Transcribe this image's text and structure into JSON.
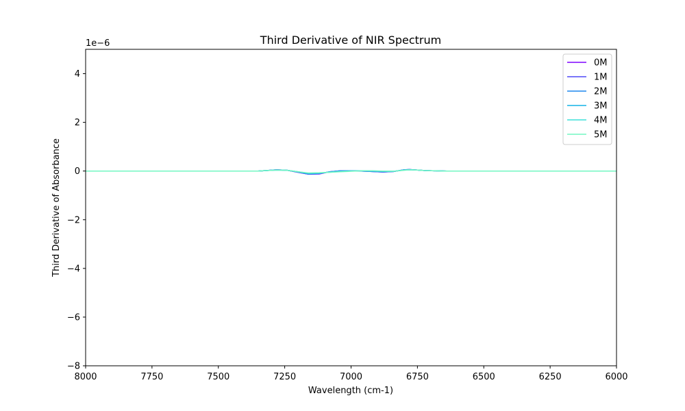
{
  "chart_data": {
    "type": "line",
    "title": "Third Derivative of NIR Spectrum",
    "xlabel": "Wavelength (cm-1)",
    "ylabel": "Third Derivative of Absorbance",
    "y_offset_text": "1e−6",
    "xlim": [
      8000,
      6000
    ],
    "ylim": [
      -8,
      5
    ],
    "y_scale_factor": 1e-06,
    "x_ticks": [
      8000,
      7750,
      7500,
      7250,
      7000,
      6750,
      6500,
      6250,
      6000
    ],
    "x_tick_labels": [
      "8000",
      "7750",
      "7500",
      "7250",
      "7000",
      "6750",
      "6500",
      "6250",
      "6000"
    ],
    "y_ticks": [
      4,
      2,
      0,
      -2,
      -4,
      -6,
      -8
    ],
    "y_tick_labels": [
      "4",
      "2",
      "0",
      "−2",
      "−4",
      "−6",
      "−8"
    ],
    "grid": false,
    "legend_position": "top-right",
    "series": [
      {
        "name": "0M",
        "color": "#7f00ff",
        "x": [
          8000,
          7350,
          7320,
          7280,
          7240,
          7200,
          7160,
          7120,
          7080,
          7040,
          7000,
          6960,
          6920,
          6880,
          6840,
          6800,
          6780,
          6750,
          6720,
          6680,
          6640,
          6600,
          6000
        ],
        "y": [
          0,
          0,
          0.02,
          0.05,
          0.03,
          -0.05,
          -0.13,
          -0.12,
          -0.03,
          0.01,
          0.01,
          0.0,
          -0.02,
          -0.04,
          -0.02,
          0.05,
          0.06,
          0.04,
          0.02,
          0.01,
          0.0,
          0.0,
          0
        ]
      },
      {
        "name": "1M",
        "color": "#4f49f7",
        "x": [
          8000,
          7350,
          7320,
          7280,
          7240,
          7200,
          7160,
          7120,
          7080,
          7040,
          7000,
          6960,
          6920,
          6880,
          6840,
          6800,
          6780,
          6750,
          6720,
          6680,
          6640,
          6600,
          6000
        ],
        "y": [
          0,
          0,
          0.02,
          0.05,
          0.03,
          -0.05,
          -0.13,
          -0.11,
          -0.03,
          0.01,
          0.01,
          0.0,
          -0.02,
          -0.04,
          -0.02,
          0.05,
          0.06,
          0.04,
          0.02,
          0.01,
          0.0,
          0.0,
          0
        ]
      },
      {
        "name": "2M",
        "color": "#1c86ee",
        "x": [
          8000,
          7350,
          7320,
          7280,
          7240,
          7200,
          7160,
          7120,
          7080,
          7040,
          7000,
          6960,
          6920,
          6880,
          6840,
          6800,
          6780,
          6750,
          6720,
          6680,
          6640,
          6600,
          6000
        ],
        "y": [
          0,
          0,
          0.02,
          0.05,
          0.03,
          -0.04,
          -0.12,
          -0.1,
          -0.03,
          0.01,
          0.01,
          0.0,
          -0.02,
          -0.03,
          -0.02,
          0.05,
          0.06,
          0.04,
          0.02,
          0.01,
          0.0,
          0.0,
          0
        ]
      },
      {
        "name": "3M",
        "color": "#12b2e6",
        "x": [
          8000,
          7350,
          7320,
          7280,
          7240,
          7200,
          7160,
          7120,
          7080,
          7040,
          7000,
          6960,
          6920,
          6880,
          6840,
          6800,
          6780,
          6750,
          6720,
          6680,
          6640,
          6600,
          6000
        ],
        "y": [
          0,
          0,
          0.02,
          0.04,
          0.03,
          -0.03,
          -0.1,
          -0.09,
          -0.04,
          -0.01,
          0.01,
          0.01,
          0.0,
          -0.02,
          -0.01,
          0.04,
          0.05,
          0.04,
          0.02,
          0.01,
          0.0,
          0.0,
          0
        ]
      },
      {
        "name": "4M",
        "color": "#3de0d8",
        "x": [
          8000,
          7350,
          7320,
          7280,
          7240,
          7200,
          7160,
          7120,
          7080,
          7040,
          7000,
          6960,
          6920,
          6880,
          6840,
          6800,
          6780,
          6750,
          6720,
          6680,
          6640,
          6600,
          6000
        ],
        "y": [
          0,
          0,
          0.02,
          0.04,
          0.03,
          -0.03,
          -0.09,
          -0.08,
          -0.05,
          -0.02,
          0.0,
          0.01,
          0.01,
          -0.01,
          -0.01,
          0.04,
          0.05,
          0.04,
          0.02,
          0.01,
          0.0,
          0.0,
          0
        ]
      },
      {
        "name": "5M",
        "color": "#72f7c2",
        "x": [
          8000,
          7350,
          7320,
          7280,
          7240,
          7200,
          7160,
          7120,
          7080,
          7040,
          7000,
          6960,
          6920,
          6880,
          6840,
          6800,
          6780,
          6750,
          6720,
          6680,
          6640,
          6600,
          6000
        ],
        "y": [
          0,
          0,
          0.02,
          0.04,
          0.03,
          -0.03,
          -0.08,
          -0.07,
          -0.05,
          -0.03,
          -0.01,
          0.01,
          0.01,
          0.0,
          -0.01,
          0.03,
          0.05,
          0.04,
          0.02,
          0.01,
          0.0,
          0.0,
          0
        ]
      }
    ]
  }
}
